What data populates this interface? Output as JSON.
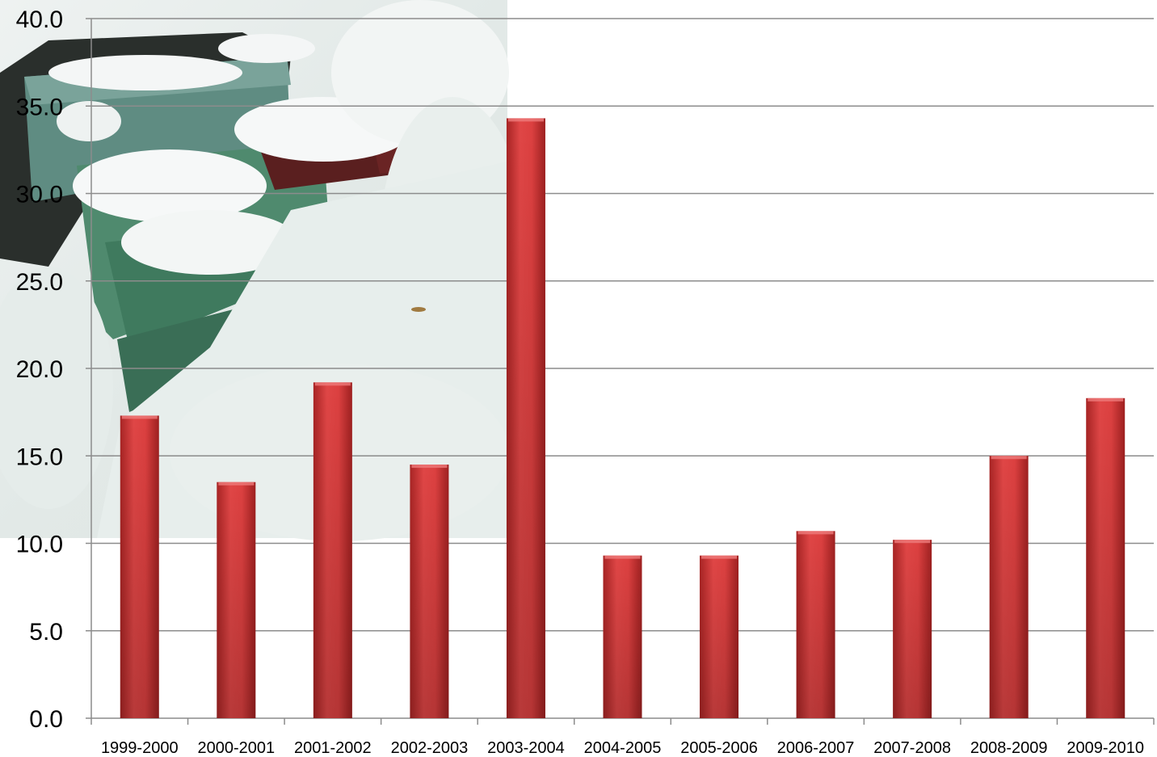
{
  "chart_data": {
    "type": "bar",
    "title": "",
    "xlabel": "",
    "ylabel": "",
    "ylim": [
      0,
      40
    ],
    "yticks": [
      "0.0",
      "5.0",
      "10.0",
      "15.0",
      "20.0",
      "25.0",
      "30.0",
      "35.0",
      "40.0"
    ],
    "grid": true,
    "legend": "none",
    "categories": [
      "1999-2000",
      "2000-2001",
      "2001-2002",
      "2002-2003",
      "2003-2004",
      "2004-2005",
      "2005-2006",
      "2006-2007",
      "2007-2008",
      "2008-2009",
      "2009-2010"
    ],
    "values": [
      17.3,
      13.5,
      19.2,
      14.5,
      34.3,
      9.3,
      9.3,
      10.7,
      10.2,
      15.0,
      18.3
    ],
    "bar_color": "#d43a3a",
    "background_photo": "snow-covered-beehives"
  }
}
